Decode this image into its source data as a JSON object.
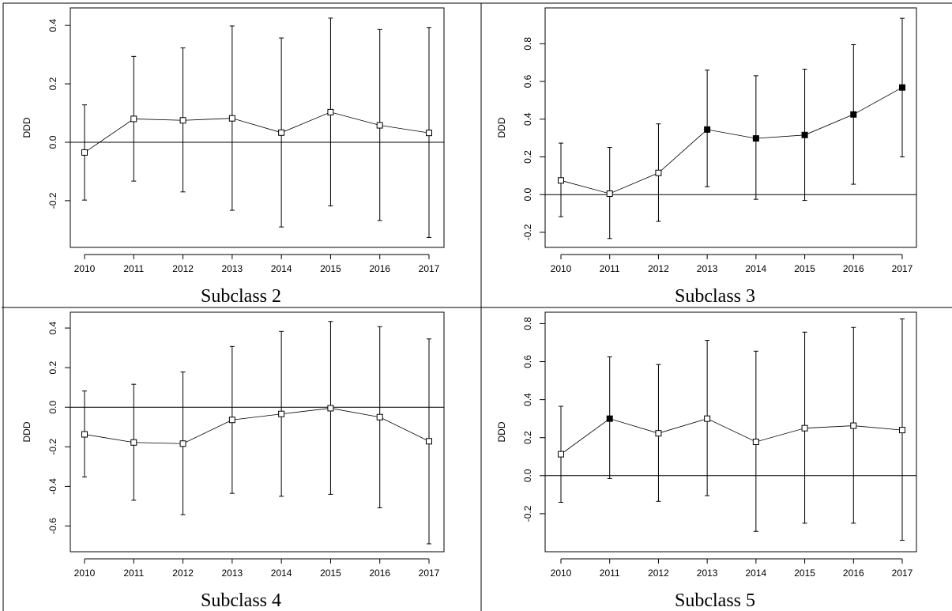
{
  "chart_data": [
    {
      "type": "scatter",
      "title": "",
      "caption": "Subclass 2",
      "xlabel": "",
      "ylabel": "DDD",
      "x": [
        2010,
        2011,
        2012,
        2013,
        2014,
        2015,
        2016,
        2017
      ],
      "x_tick_labels": [
        "2010",
        "2011",
        "2012",
        "2013",
        "2014",
        "2015",
        "2016",
        "2017"
      ],
      "y_ticks": [
        -0.2,
        0.0,
        0.2,
        0.4
      ],
      "y_tick_labels": [
        "-0.2",
        "0.0",
        "0.2",
        "0.4"
      ],
      "ylim": [
        -0.36,
        0.46
      ],
      "reference_line": 0,
      "series": [
        {
          "values": [
            -0.035,
            0.08,
            0.075,
            0.082,
            0.033,
            0.103,
            0.058,
            0.032
          ],
          "lower": [
            -0.198,
            -0.133,
            -0.17,
            -0.233,
            -0.29,
            -0.218,
            -0.268,
            -0.326
          ],
          "upper": [
            0.128,
            0.294,
            0.323,
            0.398,
            0.357,
            0.425,
            0.386,
            0.393
          ],
          "marker_filled": [
            false,
            false,
            false,
            false,
            false,
            false,
            false,
            false
          ]
        }
      ]
    },
    {
      "type": "scatter",
      "title": "",
      "caption": "Subclass 3",
      "xlabel": "",
      "ylabel": "DDD",
      "x": [
        2010,
        2011,
        2012,
        2013,
        2014,
        2015,
        2016,
        2017
      ],
      "x_tick_labels": [
        "2010",
        "2011",
        "2012",
        "2013",
        "2014",
        "2015",
        "2016",
        "2017"
      ],
      "y_ticks": [
        -0.2,
        0.0,
        0.2,
        0.4,
        0.6,
        0.8
      ],
      "y_tick_labels": [
        "-0.2",
        "0.0",
        "0.2",
        "0.4",
        "0.6",
        "0.8"
      ],
      "ylim": [
        -0.28,
        0.99
      ],
      "reference_line": 0,
      "series": [
        {
          "values": [
            0.075,
            0.005,
            0.115,
            0.345,
            0.298,
            0.316,
            0.425,
            0.568
          ],
          "lower": [
            -0.117,
            -0.233,
            -0.142,
            0.042,
            -0.025,
            -0.031,
            0.055,
            0.2
          ],
          "upper": [
            0.273,
            0.25,
            0.375,
            0.66,
            0.63,
            0.665,
            0.795,
            0.935
          ],
          "marker_filled": [
            false,
            false,
            false,
            true,
            true,
            true,
            true,
            true
          ]
        }
      ]
    },
    {
      "type": "scatter",
      "title": "",
      "caption": "Subclass 4",
      "xlabel": "",
      "ylabel": "DDD",
      "x": [
        2010,
        2011,
        2012,
        2013,
        2014,
        2015,
        2016,
        2017
      ],
      "x_tick_labels": [
        "2010",
        "2011",
        "2012",
        "2013",
        "2014",
        "2015",
        "2016",
        "2017"
      ],
      "y_ticks": [
        -0.6,
        -0.4,
        -0.2,
        0.0,
        0.2,
        0.4
      ],
      "y_tick_labels": [
        "-0.6",
        "-0.4",
        "-0.2",
        "0.0",
        "0.2",
        "0.4"
      ],
      "ylim": [
        -0.73,
        0.48
      ],
      "reference_line": 0,
      "series": [
        {
          "values": [
            -0.137,
            -0.178,
            -0.184,
            -0.064,
            -0.034,
            -0.005,
            -0.05,
            -0.172
          ],
          "lower": [
            -0.352,
            -0.47,
            -0.543,
            -0.435,
            -0.45,
            -0.44,
            -0.508,
            -0.69
          ],
          "upper": [
            0.082,
            0.116,
            0.178,
            0.307,
            0.383,
            0.433,
            0.407,
            0.345
          ],
          "marker_filled": [
            false,
            false,
            false,
            false,
            false,
            false,
            false,
            false
          ]
        }
      ]
    },
    {
      "type": "scatter",
      "title": "",
      "caption": "Subclass 5",
      "xlabel": "",
      "ylabel": "DDD",
      "x": [
        2010,
        2011,
        2012,
        2013,
        2014,
        2015,
        2016,
        2017
      ],
      "x_tick_labels": [
        "2010",
        "2011",
        "2012",
        "2013",
        "2014",
        "2015",
        "2016",
        "2017"
      ],
      "y_ticks": [
        -0.2,
        0.0,
        0.2,
        0.4,
        0.6,
        0.8
      ],
      "y_tick_labels": [
        "-0.2",
        "0.0",
        "0.2",
        "0.4",
        "0.6",
        "0.8"
      ],
      "ylim": [
        -0.4,
        0.86
      ],
      "reference_line": 0,
      "series": [
        {
          "values": [
            0.113,
            0.3,
            0.223,
            0.3,
            0.178,
            0.25,
            0.263,
            0.24
          ],
          "lower": [
            -0.14,
            -0.015,
            -0.135,
            -0.105,
            -0.293,
            -0.25,
            -0.25,
            -0.34
          ],
          "upper": [
            0.365,
            0.625,
            0.585,
            0.712,
            0.655,
            0.755,
            0.78,
            0.825
          ],
          "marker_filled": [
            false,
            true,
            false,
            false,
            false,
            false,
            false,
            false
          ]
        }
      ]
    }
  ]
}
